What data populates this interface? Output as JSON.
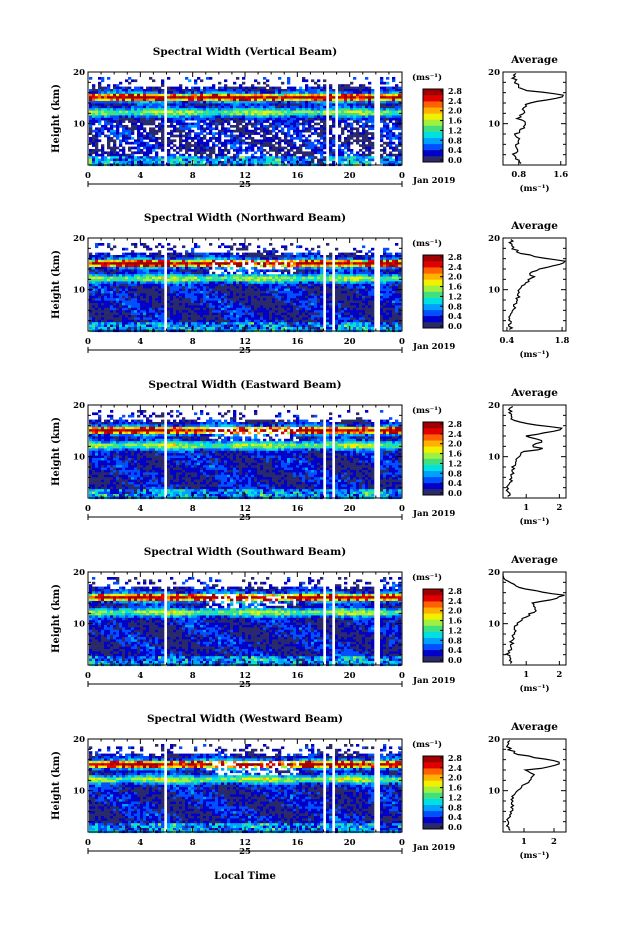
{
  "figure": {
    "panels": [
      {
        "title": "Spectral Width (Vertical Beam)",
        "average_xticks": [
          "0.8",
          "1.6"
        ]
      },
      {
        "title": "Spectral Width (Northward Beam)",
        "average_xticks": [
          "0.4",
          "1.8"
        ]
      },
      {
        "title": "Spectral Width (Eastward Beam)",
        "average_xticks": [
          "1",
          "2"
        ]
      },
      {
        "title": "Spectral Width (Southward Beam)",
        "average_xticks": [
          "1",
          "2"
        ]
      },
      {
        "title": "Spectral Width (Westward Beam)",
        "average_xticks": [
          "1",
          "2"
        ]
      }
    ],
    "height_label": "Height (km)",
    "height_ticks": [
      "20",
      "10"
    ],
    "time_ticks": [
      "0",
      "4",
      "8",
      "12",
      "16",
      "20",
      "0"
    ],
    "date_day": "25",
    "date_month": "Jan 2019",
    "colorbar_unit": "(ms⁻¹)",
    "colorbar_ticks": [
      "2.8",
      "2.4",
      "2.0",
      "1.6",
      "1.2",
      "0.8",
      "0.4",
      "0.0"
    ],
    "colorbar_colors": [
      "#2a2a6a",
      "#0000c8",
      "#0050ff",
      "#00a0ff",
      "#00e0e0",
      "#40e080",
      "#a0f040",
      "#f0f000",
      "#ffb000",
      "#ff6000",
      "#e00000",
      "#a00000"
    ],
    "average_title": "Average",
    "average_xlabel": "(ms⁻¹)",
    "xlabel": "Local Time"
  },
  "chart_data": [
    {
      "type": "heatmap",
      "title": "Spectral Width (Vertical Beam)",
      "xlabel": "Local Time",
      "ylabel": "Height (km)",
      "x_range_hours": [
        0,
        24
      ],
      "ylim_km": [
        2,
        20
      ],
      "colorbar_range": [
        0.0,
        2.8
      ],
      "data_gaps_hours": [
        [
          5.7,
          5.95
        ],
        [
          18.0,
          18.2
        ],
        [
          18.7,
          18.9
        ],
        [
          21.8,
          22.1
        ]
      ],
      "average_profile": {
        "height_km": [
          2.5,
          4,
          5,
          6,
          7,
          8,
          9,
          10,
          11,
          12,
          13,
          14,
          14.5,
          15,
          15.5,
          16,
          16.5,
          17,
          18,
          19,
          20
        ],
        "value": [
          0.85,
          0.7,
          0.8,
          0.75,
          0.8,
          0.75,
          0.85,
          0.95,
          0.8,
          0.9,
          0.85,
          1.0,
          1.3,
          1.55,
          1.65,
          1.35,
          0.9,
          0.8,
          0.75,
          0.7,
          0.75
        ],
        "xlim": [
          0.5,
          1.7
        ]
      }
    },
    {
      "type": "heatmap",
      "title": "Spectral Width (Northward Beam)",
      "xlabel": "Local Time",
      "ylabel": "Height (km)",
      "x_range_hours": [
        0,
        24
      ],
      "ylim_km": [
        2,
        20
      ],
      "colorbar_range": [
        0.0,
        2.8
      ],
      "data_gaps_hours": [
        [
          5.7,
          5.95
        ],
        [
          17.8,
          18.0
        ],
        [
          18.6,
          18.8
        ],
        [
          21.8,
          22.1
        ]
      ],
      "average_profile": {
        "height_km": [
          2.5,
          4,
          5,
          6,
          7,
          8,
          9,
          10,
          11,
          12,
          12.5,
          13,
          14,
          15,
          15.5,
          16,
          17,
          18,
          19,
          20
        ],
        "value": [
          0.5,
          0.45,
          0.5,
          0.55,
          0.6,
          0.65,
          0.7,
          0.75,
          0.8,
          1.0,
          1.1,
          0.95,
          1.25,
          1.75,
          1.85,
          1.4,
          0.75,
          0.55,
          0.5,
          0.5
        ],
        "xlim": [
          0.3,
          1.9
        ]
      }
    },
    {
      "type": "heatmap",
      "title": "Spectral Width (Eastward Beam)",
      "xlabel": "Local Time",
      "ylabel": "Height (km)",
      "x_range_hours": [
        0,
        24
      ],
      "ylim_km": [
        2,
        20
      ],
      "colorbar_range": [
        0.0,
        2.8
      ],
      "data_gaps_hours": [
        [
          5.7,
          5.95
        ],
        [
          17.8,
          18.0
        ],
        [
          18.6,
          18.8
        ],
        [
          21.8,
          22.1
        ]
      ],
      "average_profile": {
        "height_km": [
          2.5,
          4,
          5,
          6,
          7,
          8,
          9,
          10,
          11,
          11.5,
          12,
          13,
          14,
          15,
          15.5,
          16,
          17,
          18,
          19,
          20
        ],
        "value": [
          0.5,
          0.45,
          0.5,
          0.55,
          0.6,
          0.6,
          0.65,
          0.75,
          0.9,
          1.6,
          1.1,
          1.5,
          1.0,
          1.9,
          2.1,
          1.4,
          0.6,
          0.5,
          0.5,
          0.55
        ],
        "xlim": [
          0.3,
          2.2
        ]
      }
    },
    {
      "type": "heatmap",
      "title": "Spectral Width (Southward Beam)",
      "xlabel": "Local Time",
      "ylabel": "Height (km)",
      "x_range_hours": [
        0,
        24
      ],
      "ylim_km": [
        2,
        20
      ],
      "colorbar_range": [
        0.0,
        2.8
      ],
      "data_gaps_hours": [
        [
          5.7,
          5.95
        ],
        [
          17.8,
          18.0
        ],
        [
          18.6,
          18.8
        ],
        [
          21.8,
          22.1
        ]
      ],
      "average_profile": {
        "height_km": [
          2.5,
          4,
          5,
          6,
          7,
          8,
          9,
          10,
          11,
          12,
          13,
          14,
          14.5,
          15,
          15.5,
          16,
          17,
          18,
          19,
          20
        ],
        "value": [
          0.5,
          0.45,
          0.5,
          0.55,
          0.6,
          0.6,
          0.65,
          0.75,
          0.9,
          1.15,
          1.35,
          1.2,
          1.6,
          2.0,
          2.1,
          1.6,
          0.8,
          0.55,
          0.3,
          0.35
        ],
        "xlim": [
          0.3,
          2.2
        ]
      }
    },
    {
      "type": "heatmap",
      "title": "Spectral Width (Westward Beam)",
      "xlabel": "Local Time",
      "ylabel": "Height (km)",
      "x_range_hours": [
        0,
        24
      ],
      "ylim_km": [
        2,
        20
      ],
      "colorbar_range": [
        0.0,
        2.8
      ],
      "data_gaps_hours": [
        [
          5.7,
          5.95
        ],
        [
          17.8,
          18.0
        ],
        [
          18.6,
          18.8
        ],
        [
          21.8,
          22.1
        ]
      ],
      "average_profile": {
        "height_km": [
          2.5,
          4,
          5,
          6,
          7,
          8,
          9,
          10,
          11,
          12,
          13,
          14,
          14.5,
          15,
          15.5,
          16,
          17,
          18,
          19,
          20
        ],
        "value": [
          0.5,
          0.45,
          0.5,
          0.55,
          0.6,
          0.6,
          0.65,
          0.75,
          0.95,
          1.2,
          1.4,
          1.1,
          1.8,
          2.1,
          2.2,
          1.8,
          0.8,
          0.5,
          0.45,
          0.5
        ],
        "xlim": [
          0.3,
          2.4
        ]
      }
    }
  ]
}
